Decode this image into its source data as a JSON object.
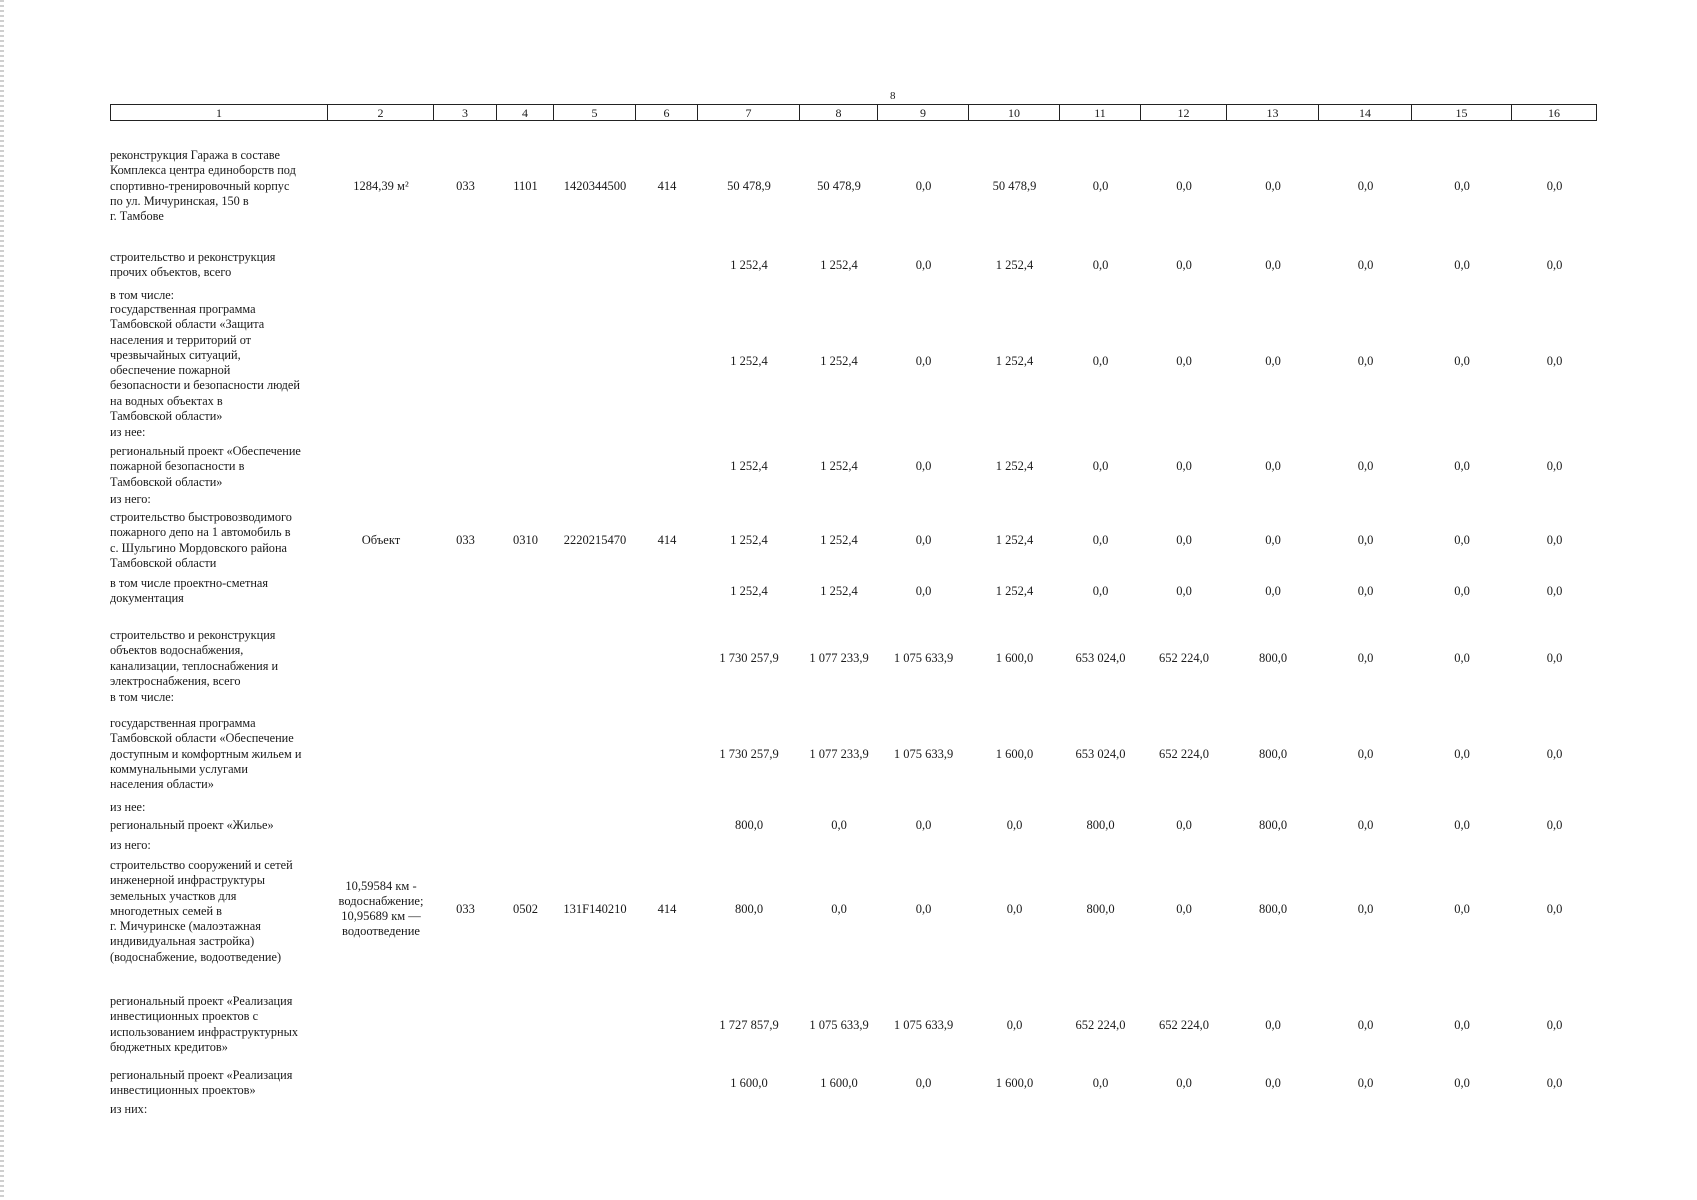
{
  "page_number": "8",
  "header": [
    "1",
    "2",
    "3",
    "4",
    "5",
    "6",
    "7",
    "8",
    "9",
    "10",
    "11",
    "12",
    "13",
    "14",
    "15",
    "16"
  ],
  "rows": [
    {
      "desc": "реконструкция Гаража в составе\nКомплекса центра единоборств под\nспортивно-тренировочный корпус\nпо ул. Мичуринская, 150 в\nг. Тамбове",
      "unit": "1284,39 м²",
      "c3": "033",
      "c4": "1101",
      "c5": "1420344500",
      "c6": "414",
      "values": [
        "50 478,9",
        "50 478,9",
        "0,0",
        "50 478,9",
        "0,0",
        "0,0",
        "0,0",
        "0,0",
        "0,0",
        "0,0"
      ]
    },
    {
      "desc": "строительство и реконструкция\nпрочих объектов, всего",
      "unit": "",
      "c3": "",
      "c4": "",
      "c5": "",
      "c6": "",
      "values": [
        "1 252,4",
        "1 252,4",
        "0,0",
        "1 252,4",
        "0,0",
        "0,0",
        "0,0",
        "0,0",
        "0,0",
        "0,0"
      ]
    },
    {
      "desc": "государственная программа\nТамбовской области «Защита\nнаселения и территорий от\nчрезвычайных ситуаций,\nобеспечение пожарной\nбезопасности и безопасности людей\nна водных объектах в\nТамбовской области»",
      "unit": "",
      "c3": "",
      "c4": "",
      "c5": "",
      "c6": "",
      "values": [
        "1 252,4",
        "1 252,4",
        "0,0",
        "1 252,4",
        "0,0",
        "0,0",
        "0,0",
        "0,0",
        "0,0",
        "0,0"
      ]
    },
    {
      "desc": "региональный проект «Обеспечение\nпожарной безопасности в\nТамбовской области»",
      "unit": "",
      "c3": "",
      "c4": "",
      "c5": "",
      "c6": "",
      "values": [
        "1 252,4",
        "1 252,4",
        "0,0",
        "1 252,4",
        "0,0",
        "0,0",
        "0,0",
        "0,0",
        "0,0",
        "0,0"
      ]
    },
    {
      "desc": "строительство быстровозводимого\nпожарного депо на 1 автомобиль в\nс. Шульгино Мордовского района\nТамбовской области",
      "unit": "Объект",
      "c3": "033",
      "c4": "0310",
      "c5": "2220215470",
      "c6": "414",
      "values": [
        "1 252,4",
        "1 252,4",
        "0,0",
        "1 252,4",
        "0,0",
        "0,0",
        "0,0",
        "0,0",
        "0,0",
        "0,0"
      ]
    },
    {
      "desc": "в том числе проектно-сметная\nдокументация",
      "unit": "",
      "c3": "",
      "c4": "",
      "c5": "",
      "c6": "",
      "values": [
        "1 252,4",
        "1 252,4",
        "0,0",
        "1 252,4",
        "0,0",
        "0,0",
        "0,0",
        "0,0",
        "0,0",
        "0,0"
      ]
    },
    {
      "desc": "строительство и реконструкция\nобъектов водоснабжения,\nканализации, теплоснабжения и\nэлектроснабжения, всего",
      "unit": "",
      "c3": "",
      "c4": "",
      "c5": "",
      "c6": "",
      "values": [
        "1 730 257,9",
        "1 077 233,9",
        "1 075 633,9",
        "1 600,0",
        "653 024,0",
        "652 224,0",
        "800,0",
        "0,0",
        "0,0",
        "0,0"
      ]
    },
    {
      "desc": "государственная программа\nТамбовской области «Обеспечение\nдоступным и комфортным жильем и\nкоммунальными услугами\nнаселения области»",
      "unit": "",
      "c3": "",
      "c4": "",
      "c5": "",
      "c6": "",
      "values": [
        "1 730 257,9",
        "1 077 233,9",
        "1 075 633,9",
        "1 600,0",
        "653 024,0",
        "652 224,0",
        "800,0",
        "0,0",
        "0,0",
        "0,0"
      ]
    },
    {
      "desc": "региональный проект «Жилье»",
      "unit": "",
      "c3": "",
      "c4": "",
      "c5": "",
      "c6": "",
      "values": [
        "800,0",
        "0,0",
        "0,0",
        "0,0",
        "800,0",
        "0,0",
        "800,0",
        "0,0",
        "0,0",
        "0,0"
      ]
    },
    {
      "desc": "строительство сооружений и сетей\nинженерной инфраструктуры\nземельных участков для\nмногодетных семей в\nг. Мичуринске (малоэтажная\nиндивидуальная застройка)\n(водоснабжение, водоотведение)",
      "unit": "10,59584 км -\nводоснабжение;\n10,95689 км —\nводоотведение",
      "c3": "033",
      "c4": "0502",
      "c5": "131F140210",
      "c6": "414",
      "values": [
        "800,0",
        "0,0",
        "0,0",
        "0,0",
        "800,0",
        "0,0",
        "800,0",
        "0,0",
        "0,0",
        "0,0"
      ]
    },
    {
      "desc": "региональный проект «Реализация\nинвестиционных проектов с\nиспользованием инфраструктурных\nбюджетных кредитов»",
      "unit": "",
      "c3": "",
      "c4": "",
      "c5": "",
      "c6": "",
      "values": [
        "1 727 857,9",
        "1 075 633,9",
        "1 075 633,9",
        "0,0",
        "652 224,0",
        "652 224,0",
        "0,0",
        "0,0",
        "0,0",
        "0,0"
      ]
    },
    {
      "desc": "региональный проект «Реализация\nинвестиционных проектов»",
      "unit": "",
      "c3": "",
      "c4": "",
      "c5": "",
      "c6": "",
      "values": [
        "1 600,0",
        "1 600,0",
        "0,0",
        "1 600,0",
        "0,0",
        "0,0",
        "0,0",
        "0,0",
        "0,0",
        "0,0"
      ]
    }
  ],
  "notes": [
    "в том числе:",
    "из нее:",
    "из него:",
    "в том числе:",
    "из нее:",
    "из него:",
    "из них:"
  ]
}
